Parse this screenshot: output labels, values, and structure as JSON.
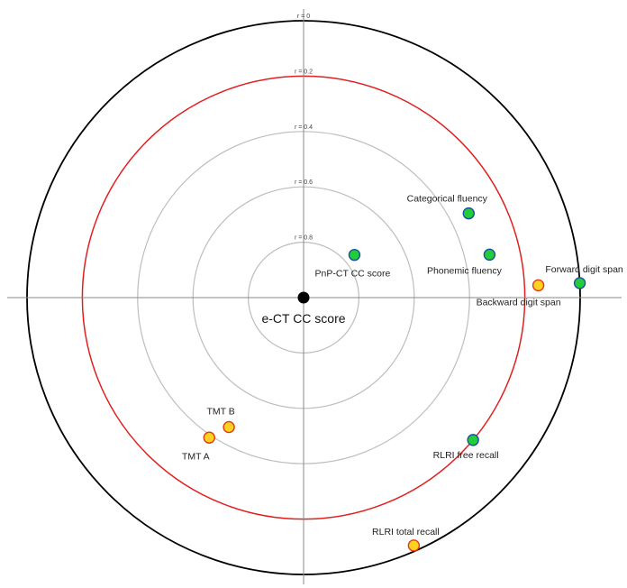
{
  "chart_data": {
    "type": "scatter",
    "subtype": "polar-correlation-plot",
    "center_label": "e-CT CC score",
    "radial_variable": "r",
    "radial_axis": "r = 1 at centre, r = 0 at outer circle",
    "rings": [
      {
        "r": 0,
        "label": "r = 0",
        "color": "#000000"
      },
      {
        "r": 0.2,
        "label": "r = 0.2",
        "color": "#e02020"
      },
      {
        "r": 0.4,
        "label": "r = 0.4",
        "color": "#bdbdbd"
      },
      {
        "r": 0.6,
        "label": "r = 0.6",
        "color": "#bdbdbd"
      },
      {
        "r": 0.8,
        "label": "r = 0.8",
        "color": "#bdbdbd"
      }
    ],
    "grid": true,
    "crosshair_axes": true,
    "point_colors": {
      "green_fill": "#22cc3a",
      "green_edge": "#1a4fa0",
      "yellow_fill": "#ffd21f",
      "yellow_edge": "#e03a1a",
      "center": "#000000"
    },
    "points": [
      {
        "label": "PnP-CT CC score",
        "r": 0.76,
        "angle_deg": 40,
        "color": "green"
      },
      {
        "label": "Categorical fluency",
        "r": 0.33,
        "angle_deg": 27,
        "color": "green"
      },
      {
        "label": "Phonemic fluency",
        "r": 0.31,
        "angle_deg": 13,
        "color": "green"
      },
      {
        "label": "Forward digit span",
        "r": 0.0,
        "angle_deg": 3,
        "color": "green"
      },
      {
        "label": "Backward digit span",
        "r": 0.15,
        "angle_deg": 3,
        "color": "yellow"
      },
      {
        "label": "TMT B",
        "r": 0.46,
        "angle_deg": 240,
        "color": "yellow"
      },
      {
        "label": "TMT A",
        "r": 0.39,
        "angle_deg": 236,
        "color": "yellow"
      },
      {
        "label": "RLRI free recall",
        "r": 0.2,
        "angle_deg": 320,
        "color": "green"
      },
      {
        "label": "RLRI total recall",
        "r": 0.02,
        "angle_deg": 294,
        "color": "yellow"
      }
    ]
  }
}
